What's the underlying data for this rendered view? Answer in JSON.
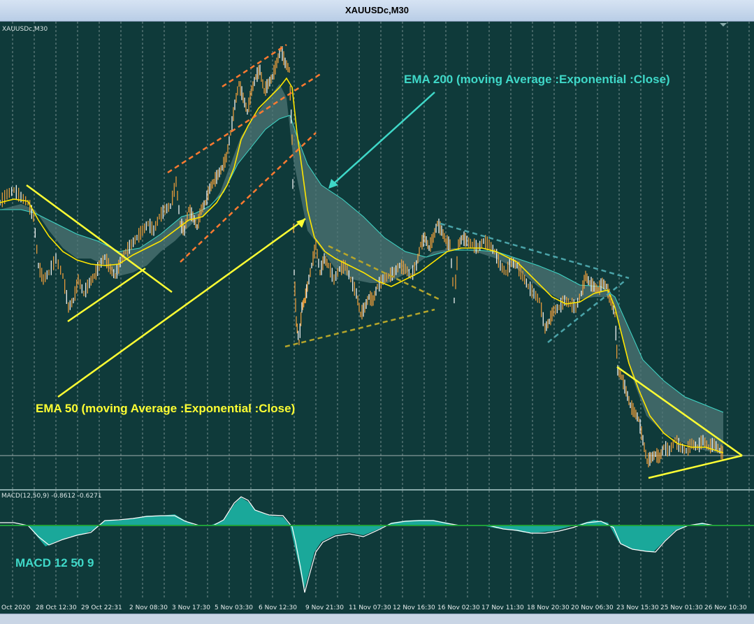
{
  "window": {
    "title": "XAUUSDc,M30"
  },
  "chart": {
    "symbol_label": "XAUUSDc,M30",
    "annotations": {
      "ema200": "EMA 200  (moving Average :Exponential :Close)",
      "ema50": "EMA 50  (moving Average :Exponential :Close)"
    },
    "colors": {
      "background": "#0f3a3a",
      "candles": "#f7a23a",
      "ema50": "#ffe600",
      "ema200": "#3fd8c8",
      "trendline": "#ffff33",
      "channel": "#ff7a30"
    }
  },
  "macd": {
    "label": "MACD(12,50,9) -0.8612 -0.6271",
    "caption": "MACD 12 50 9",
    "colors": {
      "histogram": "#1aa89a",
      "signal": "#ffffff",
      "zero": "#1fa03a"
    }
  },
  "time_axis": {
    "labels": [
      "Oct 2020",
      "28 Oct 12:30",
      "29 Oct 22:31",
      "2 Nov 08:30",
      "3 Nov 17:30",
      "5 Nov 03:30",
      "6 Nov 12:30",
      "9 Nov 21:30",
      "11 Nov 07:30",
      "12 Nov 16:30",
      "16 Nov 02:30",
      "17 Nov 11:30",
      "18 Nov 20:30",
      "20 Nov 06:30",
      "23 Nov 15:30",
      "25 Nov 01:30",
      "26 Nov 10:30"
    ]
  }
}
